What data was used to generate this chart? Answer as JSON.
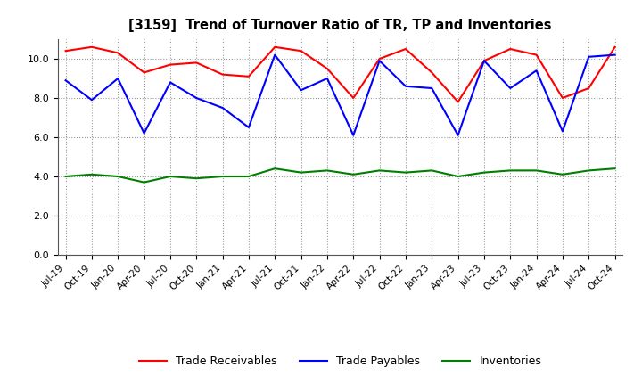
{
  "title": "[3159]  Trend of Turnover Ratio of TR, TP and Inventories",
  "labels": [
    "Jul-19",
    "Oct-19",
    "Jan-20",
    "Apr-20",
    "Jul-20",
    "Oct-20",
    "Jan-21",
    "Apr-21",
    "Jul-21",
    "Oct-21",
    "Jan-22",
    "Apr-22",
    "Jul-22",
    "Oct-22",
    "Jan-23",
    "Apr-23",
    "Jul-23",
    "Oct-23",
    "Jan-24",
    "Apr-24",
    "Jul-24",
    "Oct-24"
  ],
  "trade_receivables": [
    10.4,
    10.6,
    10.3,
    9.3,
    9.7,
    9.8,
    9.2,
    9.1,
    10.6,
    10.4,
    9.5,
    8.0,
    10.0,
    10.5,
    9.3,
    7.8,
    9.9,
    10.5,
    10.2,
    8.0,
    8.5,
    10.6
  ],
  "trade_payables": [
    8.9,
    7.9,
    9.0,
    6.2,
    8.8,
    8.0,
    7.5,
    6.5,
    10.2,
    8.4,
    9.0,
    6.1,
    9.9,
    8.6,
    8.5,
    6.1,
    9.9,
    8.5,
    9.4,
    6.3,
    10.1,
    10.2
  ],
  "inventories": [
    4.0,
    4.1,
    4.0,
    3.7,
    4.0,
    3.9,
    4.0,
    4.0,
    4.4,
    4.2,
    4.3,
    4.1,
    4.3,
    4.2,
    4.3,
    4.0,
    4.2,
    4.3,
    4.3,
    4.1,
    4.3,
    4.4
  ],
  "color_tr": "#ff0000",
  "color_tp": "#0000ff",
  "color_inv": "#008000",
  "ylim": [
    0.0,
    11.0
  ],
  "yticks": [
    0.0,
    2.0,
    4.0,
    6.0,
    8.0,
    10.0
  ],
  "legend_labels": [
    "Trade Receivables",
    "Trade Payables",
    "Inventories"
  ],
  "background_color": "#ffffff",
  "grid_color": "#999999"
}
